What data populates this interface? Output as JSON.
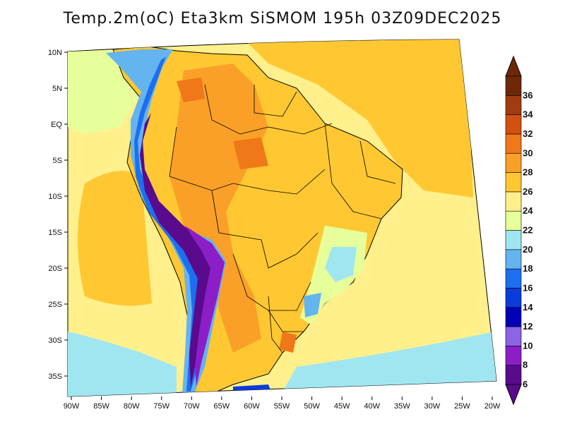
{
  "title": "Temp.2m(oC) Eta3km SiSMOM 195h 03Z09DEC2025",
  "variable": "Temp.2m",
  "units": "oC",
  "model": "Eta3km SiSMOM",
  "forecast_hour": "195h",
  "valid_time": "03Z09DEC2025",
  "map": {
    "region": "South America",
    "lon_ticks": [
      "90W",
      "85W",
      "80W",
      "75W",
      "70W",
      "65W",
      "60W",
      "55W",
      "50W",
      "45W",
      "40W",
      "35W",
      "30W",
      "25W",
      "20W"
    ],
    "lat_ticks": [
      "10N",
      "5N",
      "EQ",
      "5S",
      "10S",
      "15S",
      "20S",
      "25S",
      "30S",
      "35S"
    ]
  },
  "colorbar": {
    "levels": [
      "6",
      "8",
      "10",
      "12",
      "14",
      "16",
      "18",
      "20",
      "22",
      "24",
      "26",
      "28",
      "30",
      "32",
      "34",
      "36"
    ],
    "colors": [
      "#5a0a8c",
      "#8c1ec8",
      "#8c64e6",
      "#0000b4",
      "#0a3cdc",
      "#1e6ef0",
      "#64b4f0",
      "#a0e6f0",
      "#e6ff9a",
      "#fff08c",
      "#ffc832",
      "#faa028",
      "#f07818",
      "#d25010",
      "#a03c10",
      "#6e2808"
    ],
    "extend": "both"
  }
}
